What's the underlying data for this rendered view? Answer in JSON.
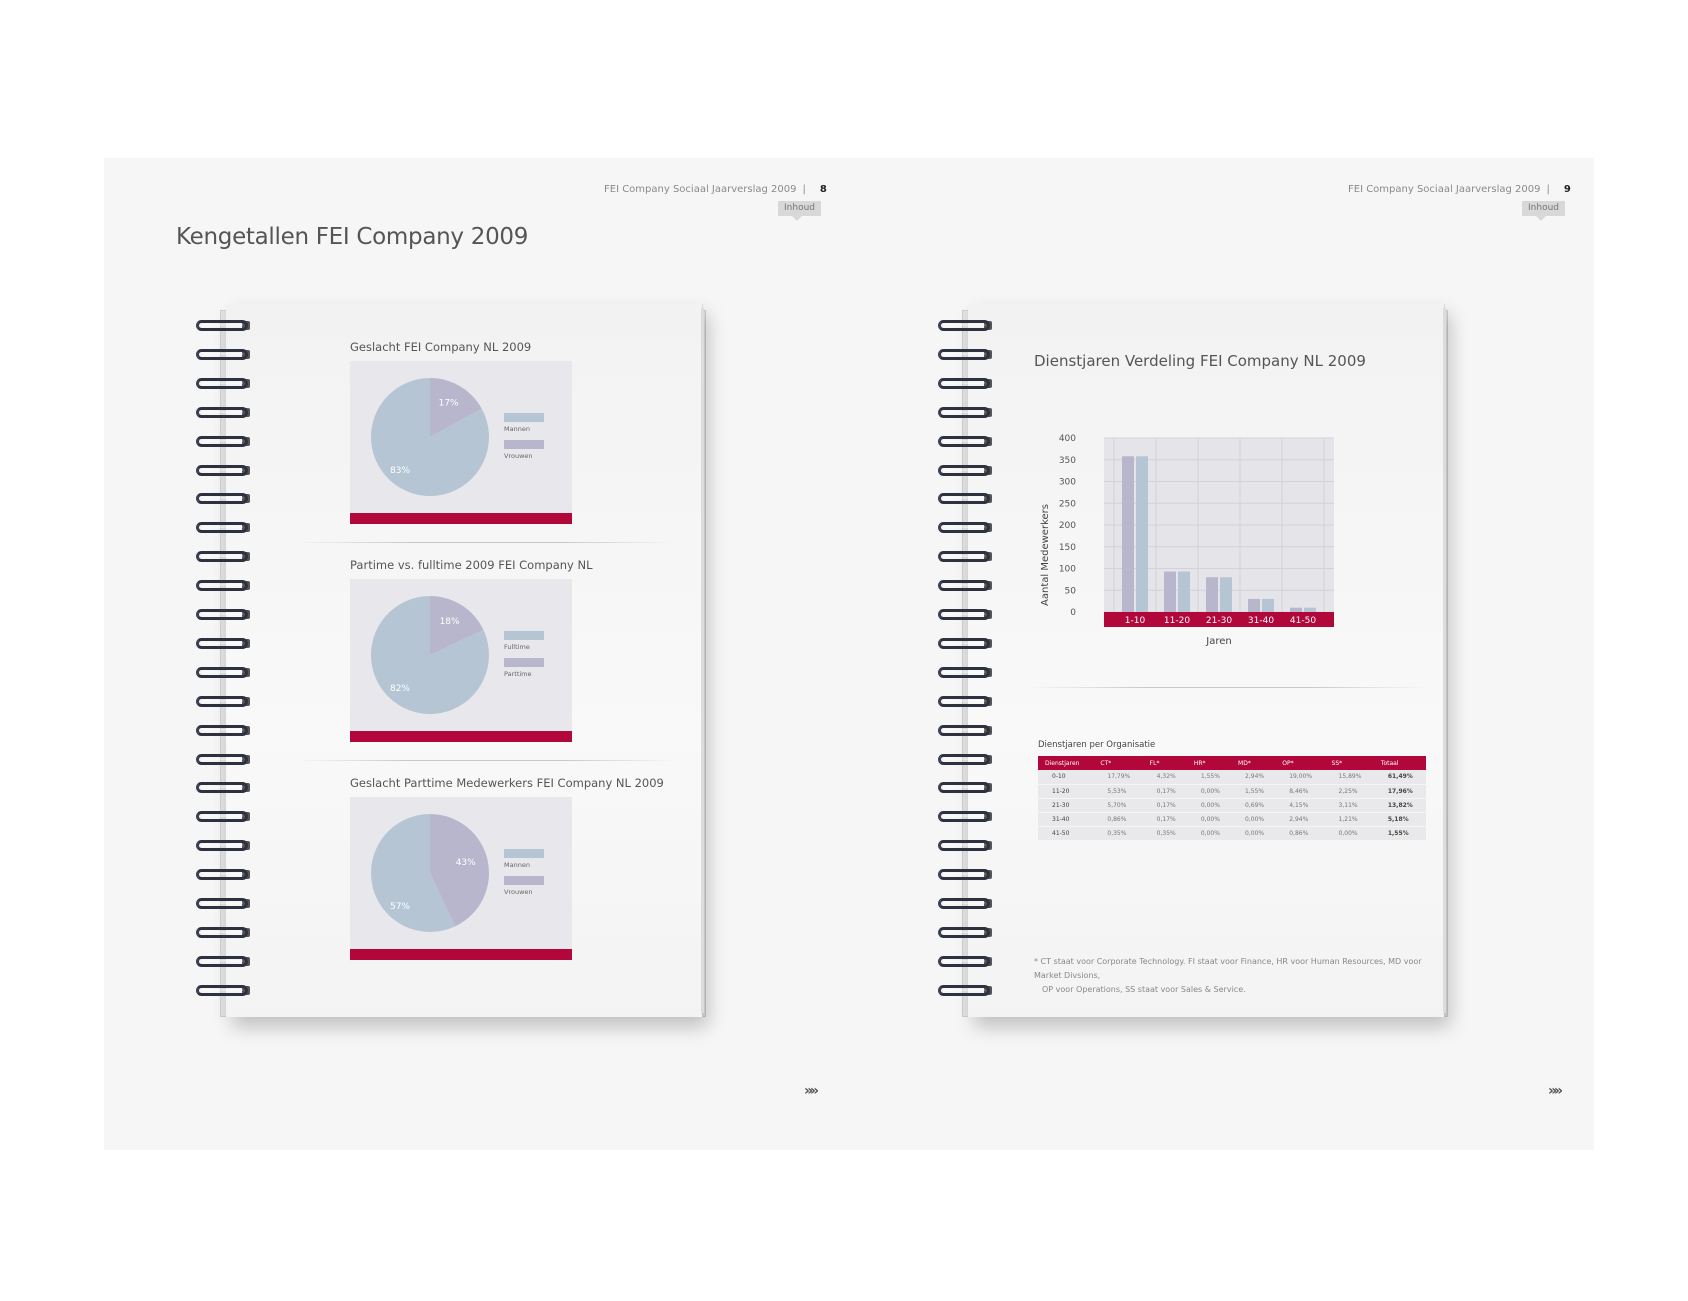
{
  "left_page": {
    "header_title": "FEI Company Sociaal Jaarverslag 2009",
    "header_sep": "|",
    "page_number": "8",
    "inhoud_label": "Inhoud",
    "main_title": "Kengetallen FEI Company 2009",
    "next_label": "»»"
  },
  "right_page": {
    "header_title": "FEI Company Sociaal Jaarverslag 2009",
    "header_sep": "|",
    "page_number": "9",
    "inhoud_label": "Inhoud",
    "next_label": "»»"
  },
  "colors": {
    "accent": "#b2073a",
    "series_blue": "#b6c5d3",
    "series_purple": "#b8b6cd",
    "panel": "#e8e8ec"
  },
  "chart_data": [
    {
      "type": "pie",
      "title": "Geslacht FEI Company NL 2009",
      "labels": [
        "Mannen",
        "Vrouwen"
      ],
      "values": [
        83,
        17
      ],
      "value_labels": [
        "83%",
        "17%"
      ],
      "colors": [
        "#b6c5d3",
        "#b8b6cd"
      ]
    },
    {
      "type": "pie",
      "title": "Partime vs. fulltime 2009 FEI Company NL",
      "labels": [
        "Fulltime",
        "Parttime"
      ],
      "values": [
        82,
        18
      ],
      "value_labels": [
        "82%",
        "18%"
      ],
      "colors": [
        "#b6c5d3",
        "#b8b6cd"
      ]
    },
    {
      "type": "pie",
      "title": "Geslacht Parttime Medewerkers FEI Company  NL 2009",
      "labels": [
        "Mannen",
        "Vrouwen"
      ],
      "values": [
        57,
        43
      ],
      "value_labels": [
        "57%",
        "43%"
      ],
      "colors": [
        "#b6c5d3",
        "#b8b6cd"
      ]
    },
    {
      "type": "bar",
      "title": "Dienstjaren Verdeling FEI Company NL 2009",
      "categories": [
        "1-10",
        "11-20",
        "21-30",
        "31-40",
        "41-50"
      ],
      "series": [
        {
          "values": [
            358,
            93,
            80,
            30,
            10
          ],
          "color": "#b8b6cd"
        },
        {
          "values": [
            358,
            93,
            80,
            30,
            10
          ],
          "color": "#b6c5d3"
        }
      ],
      "xlabel": "Jaren",
      "ylabel": "Aantal Medewerkers",
      "ylim": [
        0,
        400
      ],
      "yticks": [
        0,
        50,
        100,
        150,
        200,
        250,
        300,
        350,
        400
      ],
      "grid": true
    },
    {
      "type": "table",
      "title": "Dienstjaren per Organisatie",
      "columns": [
        "Dienstjaren",
        "CT*",
        "FL*",
        "HR*",
        "MD*",
        "OP*",
        "SS*",
        "Totaal"
      ],
      "rows": [
        [
          "0-10",
          "17,79%",
          "4,32%",
          "1,55%",
          "2,94%",
          "19,00%",
          "15,89%",
          "61,49%"
        ],
        [
          "11-20",
          "5,53%",
          "0,17%",
          "0,00%",
          "1,55%",
          "8,46%",
          "2,25%",
          "17,96%"
        ],
        [
          "21-30",
          "5,70%",
          "0,17%",
          "0,00%",
          "0,69%",
          "4,15%",
          "3,11%",
          "13,82%"
        ],
        [
          "31-40",
          "0,86%",
          "0,17%",
          "0,00%",
          "0,00%",
          "2,94%",
          "1,21%",
          "5,18%"
        ],
        [
          "41-50",
          "0,35%",
          "0,35%",
          "0,00%",
          "0,00%",
          "0,86%",
          "0,00%",
          "1,55%"
        ]
      ]
    }
  ],
  "footnote": {
    "line1": "*  CT staat voor Corporate Technology. FI staat voor Finance, HR voor Human Resources, MD voor Market Divsions,",
    "line2": "OP voor Operations, SS staat voor Sales & Service."
  }
}
